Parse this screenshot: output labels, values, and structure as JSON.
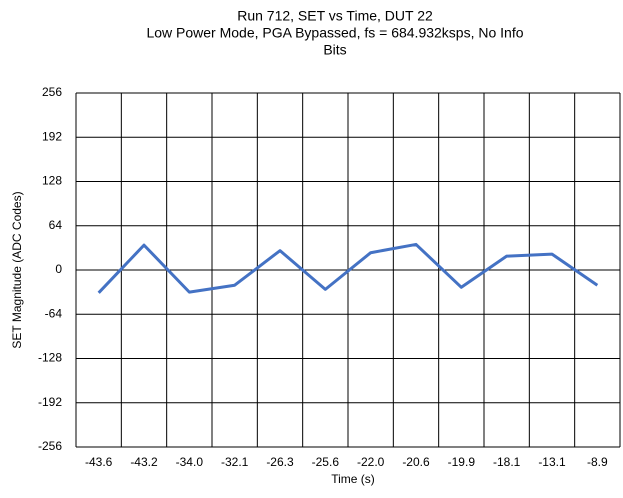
{
  "chart_data": {
    "type": "line",
    "title": [
      "Run 712, SET vs Time, DUT 22",
      "Low Power Mode, PGA Bypassed, fs = 684.932ksps, No Info",
      "Bits"
    ],
    "x_label": "Time (s)",
    "y_label": "SET Magnitude (ADC Codes)",
    "categories": [
      "-43.6",
      "-43.2",
      "-34.0",
      "-32.1",
      "-26.3",
      "-25.6",
      "-22.0",
      "-20.6",
      "-19.9",
      "-18.1",
      "-13.1",
      "-8.9"
    ],
    "series": [
      {
        "name": "SET",
        "color": "#4472c4",
        "values": [
          -33,
          36,
          -32,
          -22,
          28,
          -28,
          25,
          37,
          -25,
          20,
          23,
          -22
        ]
      }
    ],
    "ylim": [
      -256,
      256
    ],
    "yticks": [
      -256,
      -192,
      -128,
      -64,
      0,
      64,
      128,
      192,
      256
    ],
    "grid": true
  }
}
